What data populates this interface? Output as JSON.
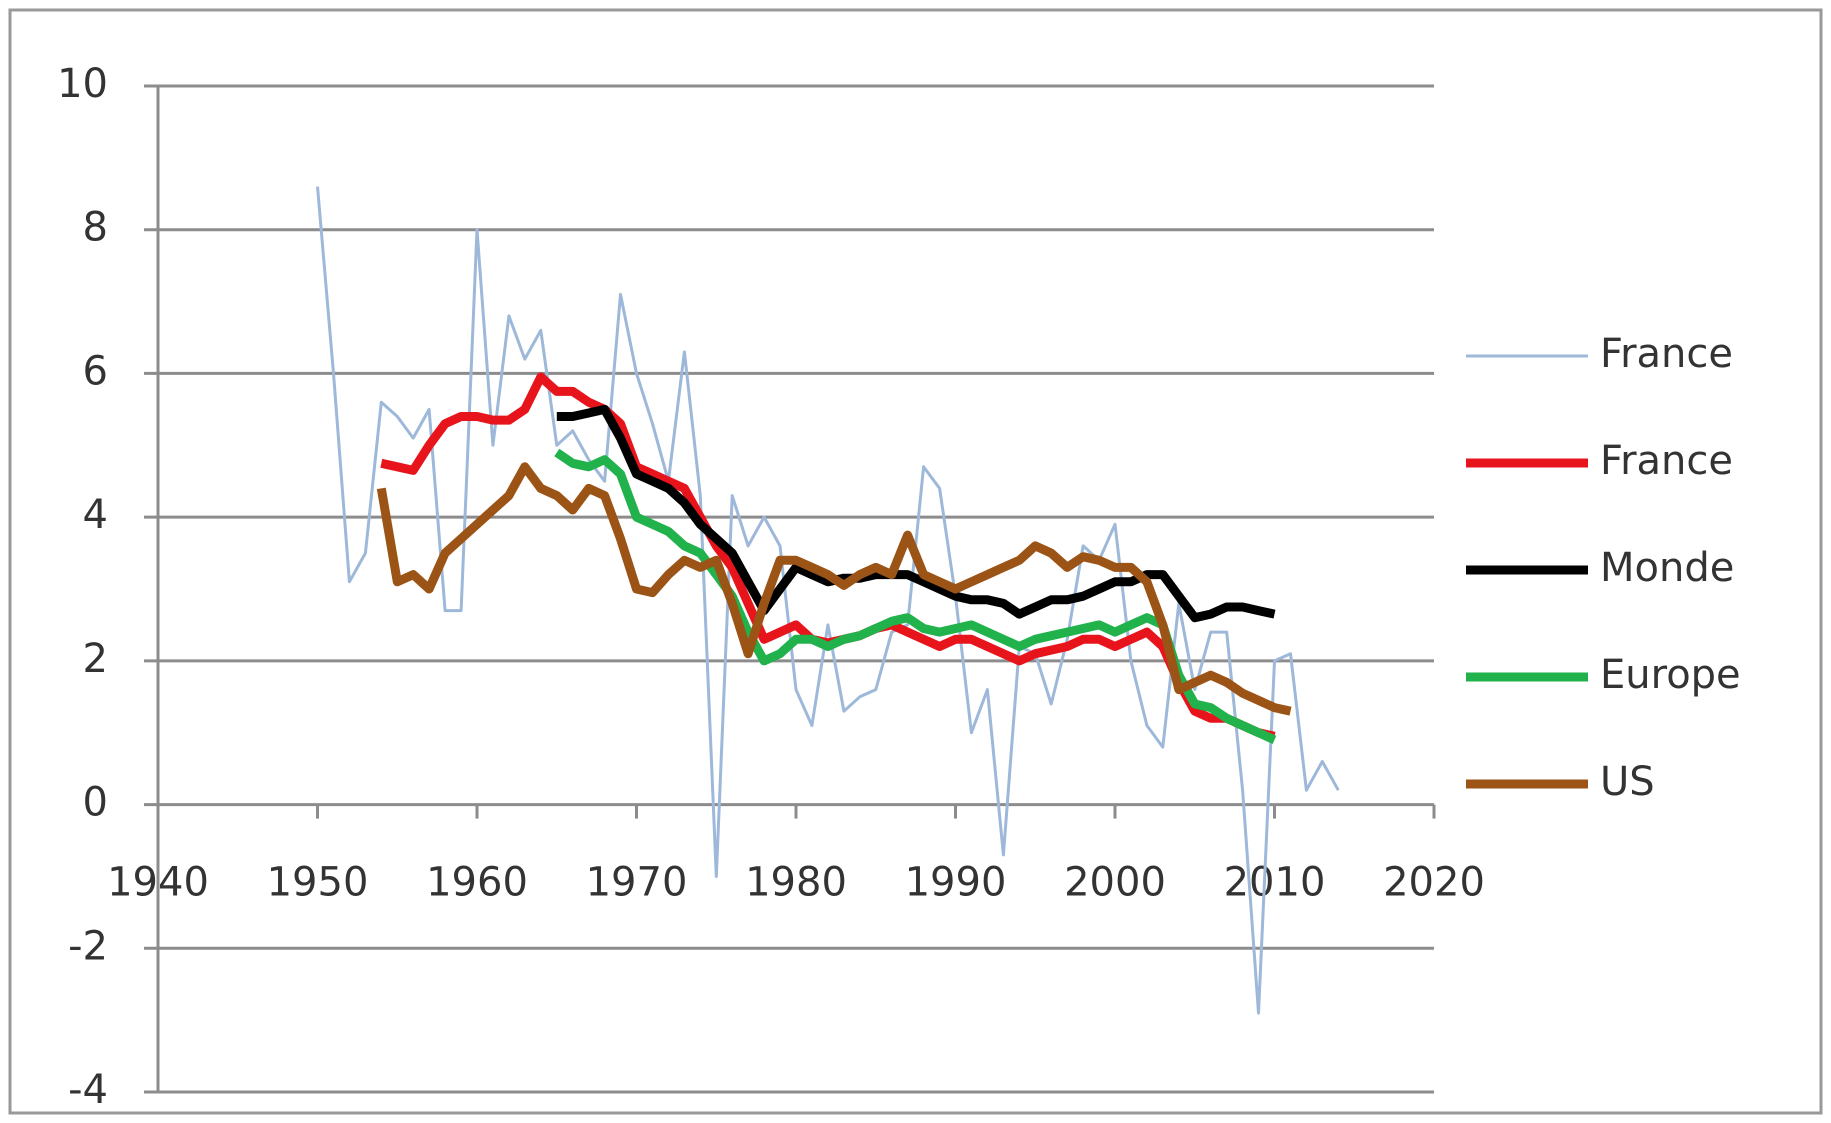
{
  "chart_data": {
    "type": "line",
    "x": [
      1950,
      1951,
      1952,
      1953,
      1954,
      1955,
      1956,
      1957,
      1958,
      1959,
      1960,
      1961,
      1962,
      1963,
      1964,
      1965,
      1966,
      1967,
      1968,
      1969,
      1970,
      1971,
      1972,
      1973,
      1974,
      1975,
      1976,
      1977,
      1978,
      1979,
      1980,
      1981,
      1982,
      1983,
      1984,
      1985,
      1986,
      1987,
      1988,
      1989,
      1990,
      1991,
      1992,
      1993,
      1994,
      1995,
      1996,
      1997,
      1998,
      1999,
      2000,
      2001,
      2002,
      2003,
      2004,
      2005,
      2006,
      2007,
      2008,
      2009,
      2010,
      2011,
      2012,
      2013,
      2014
    ],
    "series": [
      {
        "name": "France",
        "color": "#9db8d9",
        "width": 3,
        "values": [
          8.6,
          6.0,
          3.1,
          3.5,
          5.6,
          5.4,
          5.1,
          5.5,
          2.7,
          2.7,
          8.0,
          5.0,
          6.8,
          6.2,
          6.6,
          5.0,
          5.2,
          4.8,
          4.5,
          7.1,
          6.0,
          5.3,
          4.5,
          6.3,
          4.3,
          -1.0,
          4.3,
          3.6,
          4.0,
          3.6,
          1.6,
          1.1,
          2.5,
          1.3,
          1.5,
          1.6,
          2.4,
          2.5,
          4.7,
          4.4,
          2.9,
          1.0,
          1.6,
          -0.7,
          2.2,
          2.1,
          1.4,
          2.3,
          3.6,
          3.4,
          3.9,
          2.0,
          1.1,
          0.8,
          2.8,
          1.6,
          2.4,
          2.4,
          0.2,
          -2.9,
          2.0,
          2.1,
          0.2,
          0.6,
          0.2
        ]
      },
      {
        "name": "France",
        "color": "#e8141c",
        "width": 9,
        "values": [
          null,
          null,
          null,
          null,
          4.75,
          4.7,
          4.65,
          5.0,
          5.3,
          5.4,
          5.4,
          5.35,
          5.35,
          5.5,
          5.95,
          5.75,
          5.75,
          5.6,
          5.5,
          5.3,
          4.7,
          4.6,
          4.5,
          4.4,
          4.0,
          3.6,
          3.3,
          2.8,
          2.3,
          2.4,
          2.5,
          2.3,
          2.25,
          2.3,
          2.35,
          2.45,
          2.5,
          2.4,
          2.3,
          2.2,
          2.3,
          2.3,
          2.2,
          2.1,
          2.0,
          2.1,
          2.15,
          2.2,
          2.3,
          2.3,
          2.2,
          2.3,
          2.4,
          2.2,
          1.7,
          1.3,
          1.2,
          1.2,
          1.1,
          1.0,
          0.95,
          null,
          null,
          null,
          null
        ]
      },
      {
        "name": "Monde",
        "color": "#000000",
        "width": 9,
        "values": [
          null,
          null,
          null,
          null,
          null,
          null,
          null,
          null,
          null,
          null,
          null,
          null,
          null,
          null,
          null,
          5.4,
          5.4,
          5.45,
          5.5,
          5.1,
          4.6,
          4.5,
          4.4,
          4.2,
          3.9,
          3.7,
          3.5,
          3.1,
          2.7,
          3.0,
          3.3,
          3.2,
          3.1,
          3.15,
          3.15,
          3.2,
          3.2,
          3.2,
          3.1,
          3.0,
          2.9,
          2.85,
          2.85,
          2.8,
          2.65,
          2.75,
          2.85,
          2.85,
          2.9,
          3.0,
          3.1,
          3.1,
          3.2,
          3.2,
          2.9,
          2.6,
          2.65,
          2.75,
          2.75,
          2.7,
          2.65,
          null,
          null,
          null,
          null
        ]
      },
      {
        "name": "Europe",
        "color": "#21b24b",
        "width": 9,
        "values": [
          null,
          null,
          null,
          null,
          null,
          null,
          null,
          null,
          null,
          null,
          null,
          null,
          null,
          null,
          null,
          4.9,
          4.75,
          4.7,
          4.8,
          4.6,
          4.0,
          3.9,
          3.8,
          3.6,
          3.5,
          3.2,
          2.9,
          2.4,
          2.0,
          2.1,
          2.3,
          2.3,
          2.2,
          2.3,
          2.35,
          2.45,
          2.55,
          2.6,
          2.45,
          2.4,
          2.45,
          2.5,
          2.4,
          2.3,
          2.2,
          2.3,
          2.35,
          2.4,
          2.45,
          2.5,
          2.4,
          2.5,
          2.6,
          2.5,
          1.8,
          1.4,
          1.35,
          1.2,
          1.1,
          1.0,
          0.9,
          null,
          null,
          null,
          null
        ]
      },
      {
        "name": "US",
        "color": "#9c5416",
        "width": 9,
        "values": [
          null,
          null,
          null,
          null,
          4.4,
          3.1,
          3.2,
          3.0,
          3.5,
          3.7,
          3.9,
          4.1,
          4.3,
          4.7,
          4.4,
          4.3,
          4.1,
          4.4,
          4.3,
          3.7,
          3.0,
          2.95,
          3.2,
          3.4,
          3.3,
          3.4,
          2.8,
          2.1,
          2.8,
          3.4,
          3.4,
          3.3,
          3.2,
          3.05,
          3.2,
          3.3,
          3.2,
          3.75,
          3.2,
          3.1,
          3.0,
          3.1,
          3.2,
          3.3,
          3.4,
          3.6,
          3.5,
          3.3,
          3.45,
          3.4,
          3.3,
          3.3,
          3.1,
          2.5,
          1.6,
          1.7,
          1.8,
          1.7,
          1.55,
          1.45,
          1.35,
          1.3,
          null,
          null,
          null
        ]
      }
    ],
    "xlim": [
      1940,
      2020
    ],
    "xticks": [
      1940,
      1950,
      1960,
      1970,
      1980,
      1990,
      2000,
      2010,
      2020
    ],
    "ylim": [
      -4,
      10
    ],
    "yticks": [
      -4,
      -2,
      0,
      2,
      4,
      6,
      8,
      10
    ],
    "grid": true,
    "legend": "right"
  }
}
